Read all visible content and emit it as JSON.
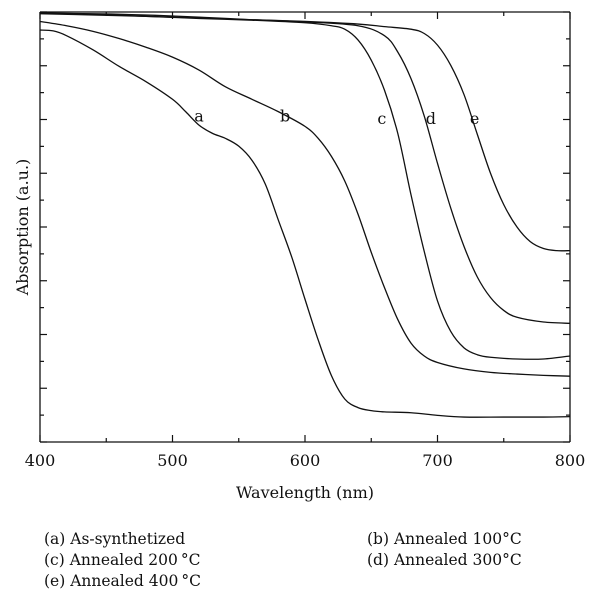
{
  "chart_data": {
    "type": "line",
    "title": "",
    "xlabel": "Wavelength (nm)",
    "ylabel": "Absorption (a.u.)",
    "xlim": [
      400,
      800
    ],
    "ylim": [
      0,
      1
    ],
    "x_ticks": [
      400,
      500,
      600,
      700,
      800
    ],
    "y_tick_labels_shown": false,
    "grid": false,
    "series": [
      {
        "name": "a",
        "x": [
          400,
          410,
          420,
          440,
          460,
          480,
          500,
          510,
          520,
          530,
          540,
          550,
          560,
          570,
          580,
          590,
          600,
          610,
          620,
          630,
          640,
          650,
          660,
          680,
          700,
          720,
          750,
          780,
          800
        ],
        "y": [
          0.958,
          0.956,
          0.945,
          0.912,
          0.873,
          0.838,
          0.797,
          0.768,
          0.737,
          0.718,
          0.706,
          0.688,
          0.655,
          0.6,
          0.515,
          0.43,
          0.332,
          0.237,
          0.154,
          0.1,
          0.08,
          0.073,
          0.07,
          0.068,
          0.062,
          0.058,
          0.058,
          0.058,
          0.059
        ]
      },
      {
        "name": "b",
        "x": [
          400,
          420,
          440,
          460,
          480,
          500,
          520,
          540,
          560,
          580,
          600,
          610,
          620,
          630,
          640,
          650,
          660,
          670,
          680,
          690,
          700,
          720,
          740,
          760,
          780,
          800
        ],
        "y": [
          0.978,
          0.968,
          0.955,
          0.938,
          0.918,
          0.895,
          0.865,
          0.826,
          0.797,
          0.768,
          0.734,
          0.706,
          0.664,
          0.607,
          0.53,
          0.441,
          0.359,
          0.285,
          0.23,
          0.2,
          0.185,
          0.17,
          0.162,
          0.158,
          0.155,
          0.153
        ]
      },
      {
        "name": "c",
        "x": [
          400,
          440,
          480,
          520,
          560,
          600,
          620,
          630,
          640,
          650,
          660,
          670,
          680,
          690,
          700,
          710,
          720,
          730,
          740,
          760,
          780,
          800
        ],
        "y": [
          0.998,
          0.995,
          0.99,
          0.985,
          0.981,
          0.975,
          0.968,
          0.96,
          0.935,
          0.888,
          0.818,
          0.718,
          0.575,
          0.443,
          0.328,
          0.257,
          0.219,
          0.203,
          0.197,
          0.193,
          0.193,
          0.2
        ]
      },
      {
        "name": "d",
        "x": [
          400,
          440,
          480,
          520,
          560,
          600,
          640,
          660,
          670,
          680,
          690,
          700,
          710,
          720,
          730,
          740,
          750,
          760,
          780,
          800
        ],
        "y": [
          0.997,
          0.996,
          0.993,
          0.988,
          0.982,
          0.977,
          0.968,
          0.945,
          0.907,
          0.845,
          0.758,
          0.648,
          0.544,
          0.455,
          0.384,
          0.336,
          0.306,
          0.29,
          0.279,
          0.276
        ]
      },
      {
        "name": "e",
        "x": [
          400,
          440,
          480,
          520,
          560,
          600,
          640,
          660,
          680,
          690,
          700,
          710,
          720,
          730,
          740,
          750,
          760,
          770,
          780,
          790,
          800
        ],
        "y": [
          0.996,
          0.993,
          0.99,
          0.986,
          0.982,
          0.978,
          0.972,
          0.966,
          0.96,
          0.95,
          0.923,
          0.876,
          0.808,
          0.716,
          0.625,
          0.552,
          0.5,
          0.466,
          0.45,
          0.445,
          0.445
        ]
      }
    ],
    "curve_labels": [
      {
        "text": "a",
        "x": 520,
        "y": 0.745
      },
      {
        "text": "b",
        "x": 585,
        "y": 0.745
      },
      {
        "text": "c",
        "x": 658,
        "y": 0.74
      },
      {
        "text": "d",
        "x": 695,
        "y": 0.74
      },
      {
        "text": "e",
        "x": 728,
        "y": 0.74
      }
    ]
  },
  "legend": {
    "col1": [
      "(a) As-synthetized",
      "(c) Annealed 200 °C",
      "(e) Annealed 400 °C"
    ],
    "col2": [
      "(b) Annealed 100°C",
      "(d) Annealed 300°C"
    ]
  }
}
